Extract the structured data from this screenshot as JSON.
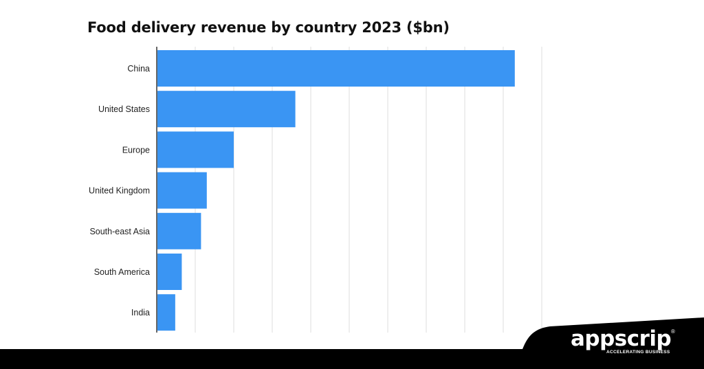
{
  "chart_data": {
    "type": "bar",
    "orientation": "horizontal",
    "title": "Food delivery revenue by country 2023 ($bn)",
    "categories": [
      "China",
      "United States",
      "Europe",
      "United Kingdom",
      "South-east Asia",
      "South America",
      "India"
    ],
    "values": [
      93,
      36,
      20,
      13,
      11.5,
      6.5,
      4.8
    ],
    "xlim": [
      0,
      100
    ],
    "xlabel": "",
    "ylabel": "",
    "grid": true,
    "bar_color": "#3a95f3"
  },
  "brand": {
    "name": "appscrip",
    "tagline": "ACCELERATING BUSINESS",
    "registered": "®"
  },
  "colors": {
    "footer_bg": "#000000",
    "gridline": "#dddddd",
    "axis": "#333333"
  }
}
